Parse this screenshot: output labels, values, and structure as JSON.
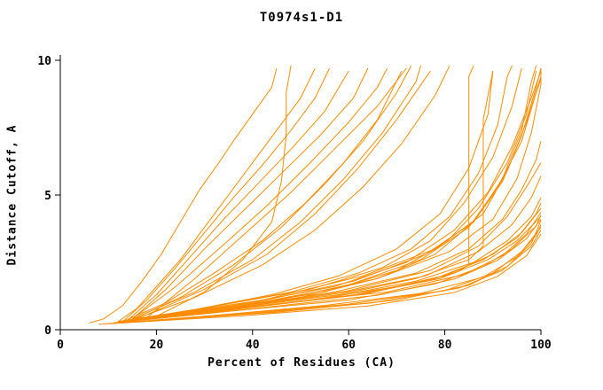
{
  "chart_data": {
    "type": "line",
    "title": "T0974s1-D1",
    "xlabel": "Percent of Residues (CA)",
    "ylabel": "Distance Cutoff, A",
    "xlim": [
      0,
      100
    ],
    "ylim": [
      0,
      10
    ],
    "x_ticks": [
      0,
      20,
      40,
      60,
      80,
      100
    ],
    "y_ticks": [
      0,
      5,
      10
    ],
    "grid": false,
    "legend": "none",
    "line_color": "#ff8c00",
    "axis_color": "#000000",
    "curves": [
      [
        [
          6,
          0.25
        ],
        [
          9,
          0.4
        ],
        [
          13,
          0.9
        ],
        [
          17,
          1.8
        ],
        [
          21,
          2.8
        ],
        [
          25,
          4.0
        ],
        [
          29,
          5.2
        ],
        [
          33,
          6.2
        ],
        [
          36,
          7.0
        ],
        [
          40,
          8.0
        ],
        [
          44,
          9.0
        ],
        [
          45,
          9.7
        ]
      ],
      [
        [
          12,
          0.3
        ],
        [
          16,
          0.8
        ],
        [
          20,
          1.6
        ],
        [
          25,
          2.6
        ],
        [
          30,
          3.8
        ],
        [
          35,
          5.0
        ],
        [
          40,
          6.2
        ],
        [
          45,
          7.4
        ],
        [
          50,
          8.6
        ],
        [
          53,
          9.7
        ]
      ],
      [
        [
          13,
          0.3
        ],
        [
          18,
          1.1
        ],
        [
          24,
          2.3
        ],
        [
          30,
          3.6
        ],
        [
          36,
          4.9
        ],
        [
          42,
          6.1
        ],
        [
          48,
          7.4
        ],
        [
          53,
          8.6
        ],
        [
          56,
          9.7
        ]
      ],
      [
        [
          14,
          0.35
        ],
        [
          20,
          1.3
        ],
        [
          27,
          2.7
        ],
        [
          34,
          4.1
        ],
        [
          41,
          5.4
        ],
        [
          48,
          6.7
        ],
        [
          55,
          8.1
        ],
        [
          60,
          9.6
        ]
      ],
      [
        [
          15,
          0.4
        ],
        [
          22,
          1.5
        ],
        [
          30,
          3.0
        ],
        [
          38,
          4.4
        ],
        [
          46,
          5.8
        ],
        [
          54,
          7.2
        ],
        [
          61,
          8.6
        ],
        [
          64,
          9.7
        ]
      ],
      [
        [
          13,
          0.3
        ],
        [
          22,
          1.0
        ],
        [
          32,
          2.1
        ],
        [
          42,
          3.3
        ],
        [
          51,
          4.7
        ],
        [
          59,
          6.2
        ],
        [
          66,
          7.8
        ],
        [
          71,
          9.6
        ]
      ],
      [
        [
          14,
          0.3
        ],
        [
          25,
          1.2
        ],
        [
          36,
          2.4
        ],
        [
          46,
          3.8
        ],
        [
          55,
          5.4
        ],
        [
          63,
          7.0
        ],
        [
          70,
          8.8
        ],
        [
          73,
          9.8
        ]
      ],
      [
        [
          15,
          0.4
        ],
        [
          28,
          1.4
        ],
        [
          40,
          2.6
        ],
        [
          50,
          4.0
        ],
        [
          59,
          5.6
        ],
        [
          67,
          7.3
        ],
        [
          74,
          9.2
        ],
        [
          75,
          9.8
        ]
      ],
      [
        [
          16,
          0.4
        ],
        [
          30,
          1.5
        ],
        [
          43,
          2.8
        ],
        [
          53,
          4.3
        ],
        [
          62,
          6.0
        ],
        [
          70,
          7.8
        ],
        [
          77,
          9.6
        ]
      ],
      [
        [
          14,
          0.3
        ],
        [
          28,
          1.2
        ],
        [
          42,
          2.4
        ],
        [
          53,
          3.7
        ],
        [
          63,
          5.3
        ],
        [
          71,
          6.9
        ],
        [
          78,
          8.7
        ],
        [
          81,
          9.8
        ]
      ],
      [
        [
          15,
          0.4
        ],
        [
          24,
          1.6
        ],
        [
          33,
          3.0
        ],
        [
          43,
          4.6
        ],
        [
          52,
          6.2
        ],
        [
          60,
          7.7
        ],
        [
          66,
          9.0
        ],
        [
          68,
          9.7
        ]
      ],
      [
        [
          18,
          0.45
        ],
        [
          28,
          1.9
        ],
        [
          38,
          3.5
        ],
        [
          48,
          5.1
        ],
        [
          57,
          6.7
        ],
        [
          66,
          8.3
        ],
        [
          72,
          9.7
        ]
      ],
      [
        [
          20,
          0.5
        ],
        [
          30,
          1.4
        ],
        [
          38,
          2.6
        ],
        [
          44,
          4.0
        ],
        [
          46,
          5.5
        ],
        [
          47,
          7.2
        ],
        [
          47,
          8.8
        ],
        [
          48,
          9.8
        ]
      ],
      [
        [
          12,
          0.3
        ],
        [
          30,
          0.8
        ],
        [
          48,
          1.4
        ],
        [
          62,
          2.1
        ],
        [
          73,
          3.0
        ],
        [
          81,
          4.2
        ],
        [
          87,
          5.8
        ],
        [
          91,
          7.6
        ],
        [
          93,
          9.4
        ],
        [
          94,
          9.8
        ]
      ],
      [
        [
          13,
          0.3
        ],
        [
          33,
          0.9
        ],
        [
          52,
          1.5
        ],
        [
          67,
          2.3
        ],
        [
          77,
          3.3
        ],
        [
          84,
          4.7
        ],
        [
          90,
          6.4
        ],
        [
          94,
          8.3
        ],
        [
          96,
          9.7
        ]
      ],
      [
        [
          11,
          0.25
        ],
        [
          30,
          0.7
        ],
        [
          50,
          1.2
        ],
        [
          66,
          1.9
        ],
        [
          78,
          2.8
        ],
        [
          86,
          4.0
        ],
        [
          92,
          5.6
        ],
        [
          96,
          7.4
        ],
        [
          98,
          9.2
        ],
        [
          99,
          9.8
        ]
      ],
      [
        [
          12,
          0.3
        ],
        [
          34,
          0.8
        ],
        [
          55,
          1.4
        ],
        [
          70,
          2.2
        ],
        [
          80,
          3.2
        ],
        [
          87,
          4.5
        ],
        [
          93,
          6.2
        ],
        [
          97,
          8.0
        ],
        [
          99,
          9.6
        ]
      ],
      [
        [
          12,
          0.3
        ],
        [
          32,
          0.7
        ],
        [
          52,
          1.1
        ],
        [
          70,
          1.6
        ],
        [
          82,
          2.1
        ],
        [
          85,
          2.4
        ],
        [
          85,
          9.4
        ],
        [
          86,
          9.8
        ]
      ],
      [
        [
          13,
          0.3
        ],
        [
          36,
          0.8
        ],
        [
          58,
          1.3
        ],
        [
          74,
          1.9
        ],
        [
          85,
          2.6
        ],
        [
          88,
          3.1
        ],
        [
          88,
          7.8
        ],
        [
          90,
          9.6
        ]
      ],
      [
        [
          12,
          0.3
        ],
        [
          36,
          0.9
        ],
        [
          57,
          1.6
        ],
        [
          72,
          2.5
        ],
        [
          82,
          3.7
        ],
        [
          89,
          5.1
        ],
        [
          94,
          6.8
        ],
        [
          98,
          8.6
        ],
        [
          100,
          9.6
        ]
      ],
      [
        [
          13,
          0.3
        ],
        [
          40,
          1.0
        ],
        [
          61,
          1.8
        ],
        [
          76,
          2.8
        ],
        [
          86,
          4.0
        ],
        [
          92,
          5.5
        ],
        [
          96,
          7.2
        ],
        [
          99,
          9.0
        ],
        [
          100,
          9.7
        ]
      ],
      [
        [
          14,
          0.35
        ],
        [
          42,
          1.1
        ],
        [
          63,
          2.0
        ],
        [
          78,
          3.0
        ],
        [
          88,
          4.3
        ],
        [
          93,
          5.9
        ],
        [
          97,
          7.7
        ],
        [
          100,
          9.4
        ]
      ],
      [
        [
          12,
          0.3
        ],
        [
          38,
          0.9
        ],
        [
          59,
          1.6
        ],
        [
          75,
          2.6
        ],
        [
          85,
          3.8
        ],
        [
          91,
          5.3
        ],
        [
          96,
          7.0
        ],
        [
          99,
          8.8
        ],
        [
          100,
          9.3
        ]
      ],
      [
        [
          12,
          0.3
        ],
        [
          35,
          0.8
        ],
        [
          57,
          1.4
        ],
        [
          74,
          2.1
        ],
        [
          85,
          3.0
        ],
        [
          92,
          4.1
        ],
        [
          96,
          5.2
        ],
        [
          99,
          6.3
        ],
        [
          100,
          7.0
        ]
      ],
      [
        [
          13,
          0.3
        ],
        [
          38,
          0.85
        ],
        [
          60,
          1.45
        ],
        [
          77,
          2.2
        ],
        [
          87,
          3.1
        ],
        [
          93,
          4.2
        ],
        [
          97,
          5.3
        ],
        [
          100,
          6.2
        ]
      ],
      [
        [
          12,
          0.28
        ],
        [
          36,
          0.8
        ],
        [
          58,
          1.35
        ],
        [
          76,
          2.0
        ],
        [
          87,
          2.9
        ],
        [
          94,
          3.9
        ],
        [
          98,
          4.9
        ],
        [
          100,
          5.7
        ]
      ],
      [
        [
          11,
          0.25
        ],
        [
          34,
          0.7
        ],
        [
          56,
          1.2
        ],
        [
          74,
          1.8
        ],
        [
          86,
          2.5
        ],
        [
          93,
          3.3
        ],
        [
          98,
          4.2
        ],
        [
          100,
          4.9
        ]
      ],
      [
        [
          12,
          0.28
        ],
        [
          36,
          0.75
        ],
        [
          60,
          1.25
        ],
        [
          78,
          1.9
        ],
        [
          88,
          2.6
        ],
        [
          95,
          3.4
        ],
        [
          99,
          4.3
        ],
        [
          100,
          4.7
        ]
      ],
      [
        [
          13,
          0.3
        ],
        [
          40,
          0.85
        ],
        [
          64,
          1.35
        ],
        [
          80,
          2.0
        ],
        [
          90,
          2.8
        ],
        [
          96,
          3.6
        ],
        [
          100,
          4.5
        ]
      ],
      [
        [
          12,
          0.28
        ],
        [
          38,
          0.8
        ],
        [
          62,
          1.3
        ],
        [
          79,
          1.9
        ],
        [
          89,
          2.6
        ],
        [
          95,
          3.3
        ],
        [
          100,
          4.2
        ]
      ],
      [
        [
          11,
          0.25
        ],
        [
          36,
          0.7
        ],
        [
          60,
          1.1
        ],
        [
          78,
          1.7
        ],
        [
          88,
          2.35
        ],
        [
          94,
          3.0
        ],
        [
          99,
          3.85
        ],
        [
          100,
          4.25
        ]
      ],
      [
        [
          12,
          0.27
        ],
        [
          40,
          0.78
        ],
        [
          66,
          1.28
        ],
        [
          82,
          1.88
        ],
        [
          91,
          2.58
        ],
        [
          97,
          3.38
        ],
        [
          100,
          4.1
        ]
      ],
      [
        [
          13,
          0.3
        ],
        [
          42,
          0.9
        ],
        [
          68,
          1.4
        ],
        [
          84,
          2.05
        ],
        [
          92,
          2.75
        ],
        [
          97,
          3.55
        ],
        [
          100,
          4.35
        ]
      ],
      [
        [
          8,
          0.2
        ],
        [
          30,
          0.5
        ],
        [
          55,
          0.9
        ],
        [
          75,
          1.35
        ],
        [
          88,
          1.95
        ],
        [
          95,
          2.7
        ],
        [
          99,
          3.5
        ],
        [
          100,
          3.9
        ]
      ],
      [
        [
          10,
          0.22
        ],
        [
          35,
          0.55
        ],
        [
          60,
          0.95
        ],
        [
          80,
          1.45
        ],
        [
          90,
          2.1
        ],
        [
          96,
          2.9
        ],
        [
          100,
          3.8
        ]
      ],
      [
        [
          11,
          0.24
        ],
        [
          40,
          0.6
        ],
        [
          65,
          1.0
        ],
        [
          83,
          1.55
        ],
        [
          92,
          2.2
        ],
        [
          98,
          3.1
        ],
        [
          100,
          3.7
        ]
      ],
      [
        [
          12,
          0.25
        ],
        [
          45,
          0.65
        ],
        [
          70,
          1.1
        ],
        [
          85,
          1.65
        ],
        [
          93,
          2.35
        ],
        [
          98,
          3.2
        ],
        [
          100,
          4.05
        ]
      ],
      [
        [
          10,
          0.22
        ],
        [
          38,
          0.52
        ],
        [
          64,
          0.88
        ],
        [
          82,
          1.38
        ],
        [
          91,
          1.98
        ],
        [
          97,
          2.75
        ],
        [
          100,
          3.55
        ]
      ],
      [
        [
          14,
          0.33
        ],
        [
          44,
          1.05
        ],
        [
          66,
          1.9
        ],
        [
          81,
          2.9
        ],
        [
          90,
          4.1
        ],
        [
          95,
          5.6
        ],
        [
          98,
          7.3
        ],
        [
          100,
          9.1
        ],
        [
          100,
          9.7
        ]
      ],
      [
        [
          12,
          0.3
        ],
        [
          28,
          0.75
        ],
        [
          44,
          1.3
        ],
        [
          58,
          2.0
        ],
        [
          70,
          3.0
        ],
        [
          79,
          4.3
        ],
        [
          85,
          6.0
        ],
        [
          89,
          8.0
        ],
        [
          90,
          9.6
        ]
      ]
    ]
  }
}
